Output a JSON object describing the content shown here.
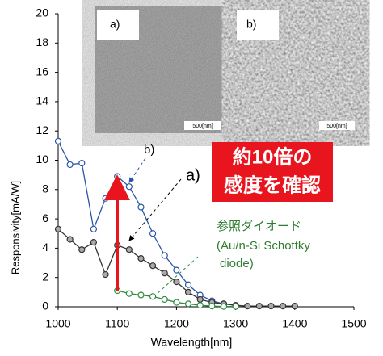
{
  "chart_data": {
    "type": "line",
    "xlabel": "Wavelength[nm]",
    "ylabel": "Responsivity[mA/W]",
    "xlim": [
      1000,
      1500
    ],
    "xticks": [
      1000,
      1100,
      1200,
      1300,
      1400,
      1500
    ],
    "ylim": [
      0,
      20
    ],
    "yticks": [
      0,
      2,
      4,
      6,
      8,
      10,
      12,
      14,
      16,
      18,
      20
    ],
    "series": [
      {
        "name": "b)",
        "color": "#2a55a8",
        "x": [
          1000,
          1020,
          1040,
          1060,
          1080,
          1100,
          1120,
          1140,
          1160,
          1180,
          1200,
          1220,
          1240,
          1260,
          1280,
          1300
        ],
        "values": [
          11.3,
          9.7,
          9.8,
          5.3,
          7.4,
          8.9,
          8.2,
          6.8,
          5.0,
          3.5,
          2.5,
          1.5,
          0.8,
          0.4,
          0.2,
          0.1
        ]
      },
      {
        "name": "a)",
        "color": "#333333",
        "x": [
          1000,
          1020,
          1040,
          1060,
          1080,
          1100,
          1120,
          1140,
          1160,
          1180,
          1200,
          1220,
          1240,
          1260,
          1280,
          1300,
          1320,
          1340,
          1360,
          1380,
          1400
        ],
        "values": [
          5.3,
          4.6,
          3.9,
          4.4,
          2.2,
          4.2,
          3.9,
          3.3,
          2.8,
          2.3,
          1.7,
          1.0,
          0.5,
          0.3,
          0.2,
          0.1,
          0.05,
          0.05,
          0.05,
          0.05,
          0.05
        ]
      },
      {
        "name": "参照ダイオード",
        "color": "#2e8b3e",
        "x": [
          1100,
          1120,
          1140,
          1160,
          1180,
          1200,
          1220,
          1240,
          1260,
          1280,
          1300
        ],
        "values": [
          1.1,
          0.9,
          0.8,
          0.7,
          0.5,
          0.3,
          0.2,
          0.1,
          0.05,
          0.02,
          0.02
        ]
      }
    ],
    "reference_note": [
      "(Au/n-Si Schottky",
      "diode)"
    ],
    "callout": [
      "約10倍の",
      "感度を確認"
    ],
    "insets": [
      {
        "label": "a)",
        "scale": "500[nm]"
      },
      {
        "label": "b)",
        "scale": "500[nm]"
      }
    ]
  }
}
